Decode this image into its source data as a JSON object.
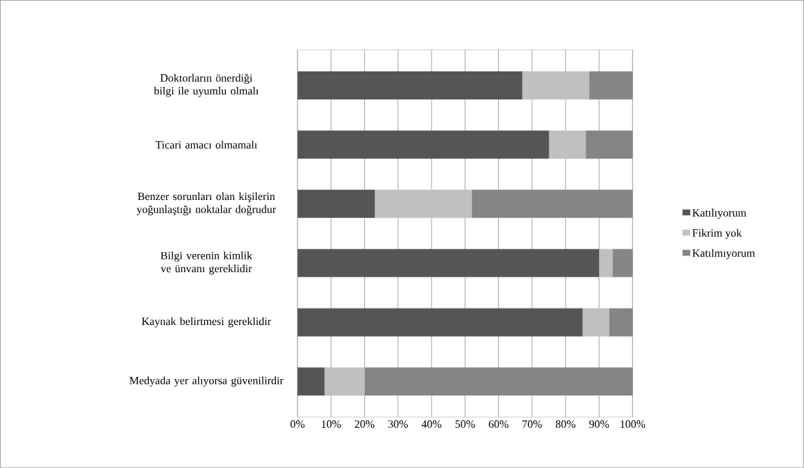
{
  "chart_data": {
    "type": "bar",
    "orientation": "horizontal",
    "stacked": true,
    "categories": [
      "Doktorların önerdiği bilgi ile uyumlu olmalı",
      "Ticari amacı olmamalı",
      "Benzer sorunları olan kişilerin yoğunlaştığı noktalar doğrudur",
      "Bilgi verenin kimlik ve ünvanı gereklidir",
      "Kaynak belirtmesi gereklidir",
      "Medyada yer alıyorsa güvenilirdir"
    ],
    "series": [
      {
        "name": "Katılıyorum",
        "color": "#555555",
        "values": [
          67,
          75,
          23,
          90,
          85,
          8
        ]
      },
      {
        "name": "Fikrim yok",
        "color": "#c0c0c0",
        "values": [
          20,
          11,
          29,
          4,
          8,
          12
        ]
      },
      {
        "name": "Katılmıyorum",
        "color": "#858585",
        "values": [
          13,
          14,
          48,
          6,
          7,
          80
        ]
      }
    ],
    "xlim": [
      0,
      100
    ],
    "xticks": [
      {
        "value": 0,
        "label": "0%"
      },
      {
        "value": 10,
        "label": "10%"
      },
      {
        "value": 20,
        "label": "20%"
      },
      {
        "value": 30,
        "label": "30%"
      },
      {
        "value": 40,
        "label": "40%"
      },
      {
        "value": 50,
        "label": "50%"
      },
      {
        "value": 60,
        "label": "60%"
      },
      {
        "value": 70,
        "label": "70%"
      },
      {
        "value": 80,
        "label": "80%"
      },
      {
        "value": 90,
        "label": "90%"
      },
      {
        "value": 100,
        "label": "100%"
      }
    ],
    "grid": "x",
    "legend": "right"
  }
}
